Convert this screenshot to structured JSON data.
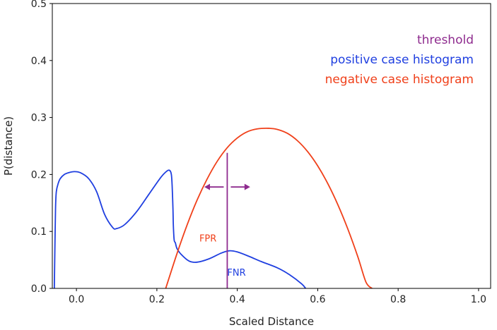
{
  "chart_data": {
    "type": "line",
    "xlabel": "Scaled Distance",
    "ylabel": "P(distance)",
    "xlim": [
      -0.06,
      1.03
    ],
    "ylim": [
      0.0,
      0.5
    ],
    "xticks": [
      "0.0",
      "0.2",
      "0.4",
      "0.6",
      "0.8",
      "1.0"
    ],
    "yticks": [
      "0.0",
      "0.1",
      "0.2",
      "0.3",
      "0.4",
      "0.5"
    ],
    "grid": false,
    "legend_position": "top-right",
    "legend": [
      {
        "label": "threshold",
        "color": "#8e2b8e"
      },
      {
        "label": "positive case histogram",
        "color": "#1f3fe0"
      },
      {
        "label": "negative case histogram",
        "color": "#f0401a"
      }
    ],
    "series": [
      {
        "name": "positive case histogram",
        "color": "#1f3fe0",
        "x": [
          -0.055,
          -0.054,
          -0.052,
          -0.05,
          -0.045,
          -0.04,
          -0.03,
          -0.02,
          -0.005,
          0.01,
          0.03,
          0.05,
          0.07,
          0.09,
          0.1,
          0.12,
          0.15,
          0.18,
          0.21,
          0.225,
          0.232,
          0.236,
          0.238,
          0.24,
          0.241,
          0.243,
          0.246,
          0.25,
          0.26,
          0.28,
          0.3,
          0.33,
          0.36,
          0.38,
          0.4,
          0.43,
          0.46,
          0.5,
          0.53,
          0.56,
          0.57
        ],
        "y": [
          0.0,
          0.05,
          0.14,
          0.17,
          0.185,
          0.193,
          0.2,
          0.203,
          0.205,
          0.203,
          0.193,
          0.17,
          0.13,
          0.107,
          0.105,
          0.112,
          0.135,
          0.165,
          0.195,
          0.206,
          0.207,
          0.2,
          0.18,
          0.14,
          0.11,
          0.085,
          0.08,
          0.07,
          0.06,
          0.048,
          0.046,
          0.052,
          0.062,
          0.066,
          0.064,
          0.056,
          0.047,
          0.036,
          0.024,
          0.008,
          0.0
        ]
      },
      {
        "name": "negative case histogram",
        "color": "#f0401a",
        "x": [
          0.222,
          0.25,
          0.275,
          0.3,
          0.325,
          0.35,
          0.375,
          0.4,
          0.425,
          0.45,
          0.478,
          0.5,
          0.525,
          0.55,
          0.575,
          0.6,
          0.625,
          0.65,
          0.675,
          0.7,
          0.72,
          0.735
        ],
        "y": [
          0.0,
          0.061,
          0.111,
          0.155,
          0.192,
          0.223,
          0.247,
          0.264,
          0.275,
          0.28,
          0.281,
          0.279,
          0.272,
          0.259,
          0.24,
          0.215,
          0.184,
          0.147,
          0.104,
          0.055,
          0.011,
          0.0
        ]
      }
    ],
    "threshold": {
      "label": "threshold",
      "x": 0.375,
      "y_top": 0.238,
      "color": "#8e2b8e"
    },
    "threshold_arrow": {
      "y": 0.178,
      "x_left": 0.318,
      "x_right": 0.432,
      "color": "#8e2b8e"
    },
    "annotations": [
      {
        "text": "FPR",
        "x": 0.327,
        "y": 0.082,
        "color": "#f0401a"
      },
      {
        "text": "FNR",
        "x": 0.398,
        "y": 0.022,
        "color": "#1f3fe0"
      }
    ]
  }
}
